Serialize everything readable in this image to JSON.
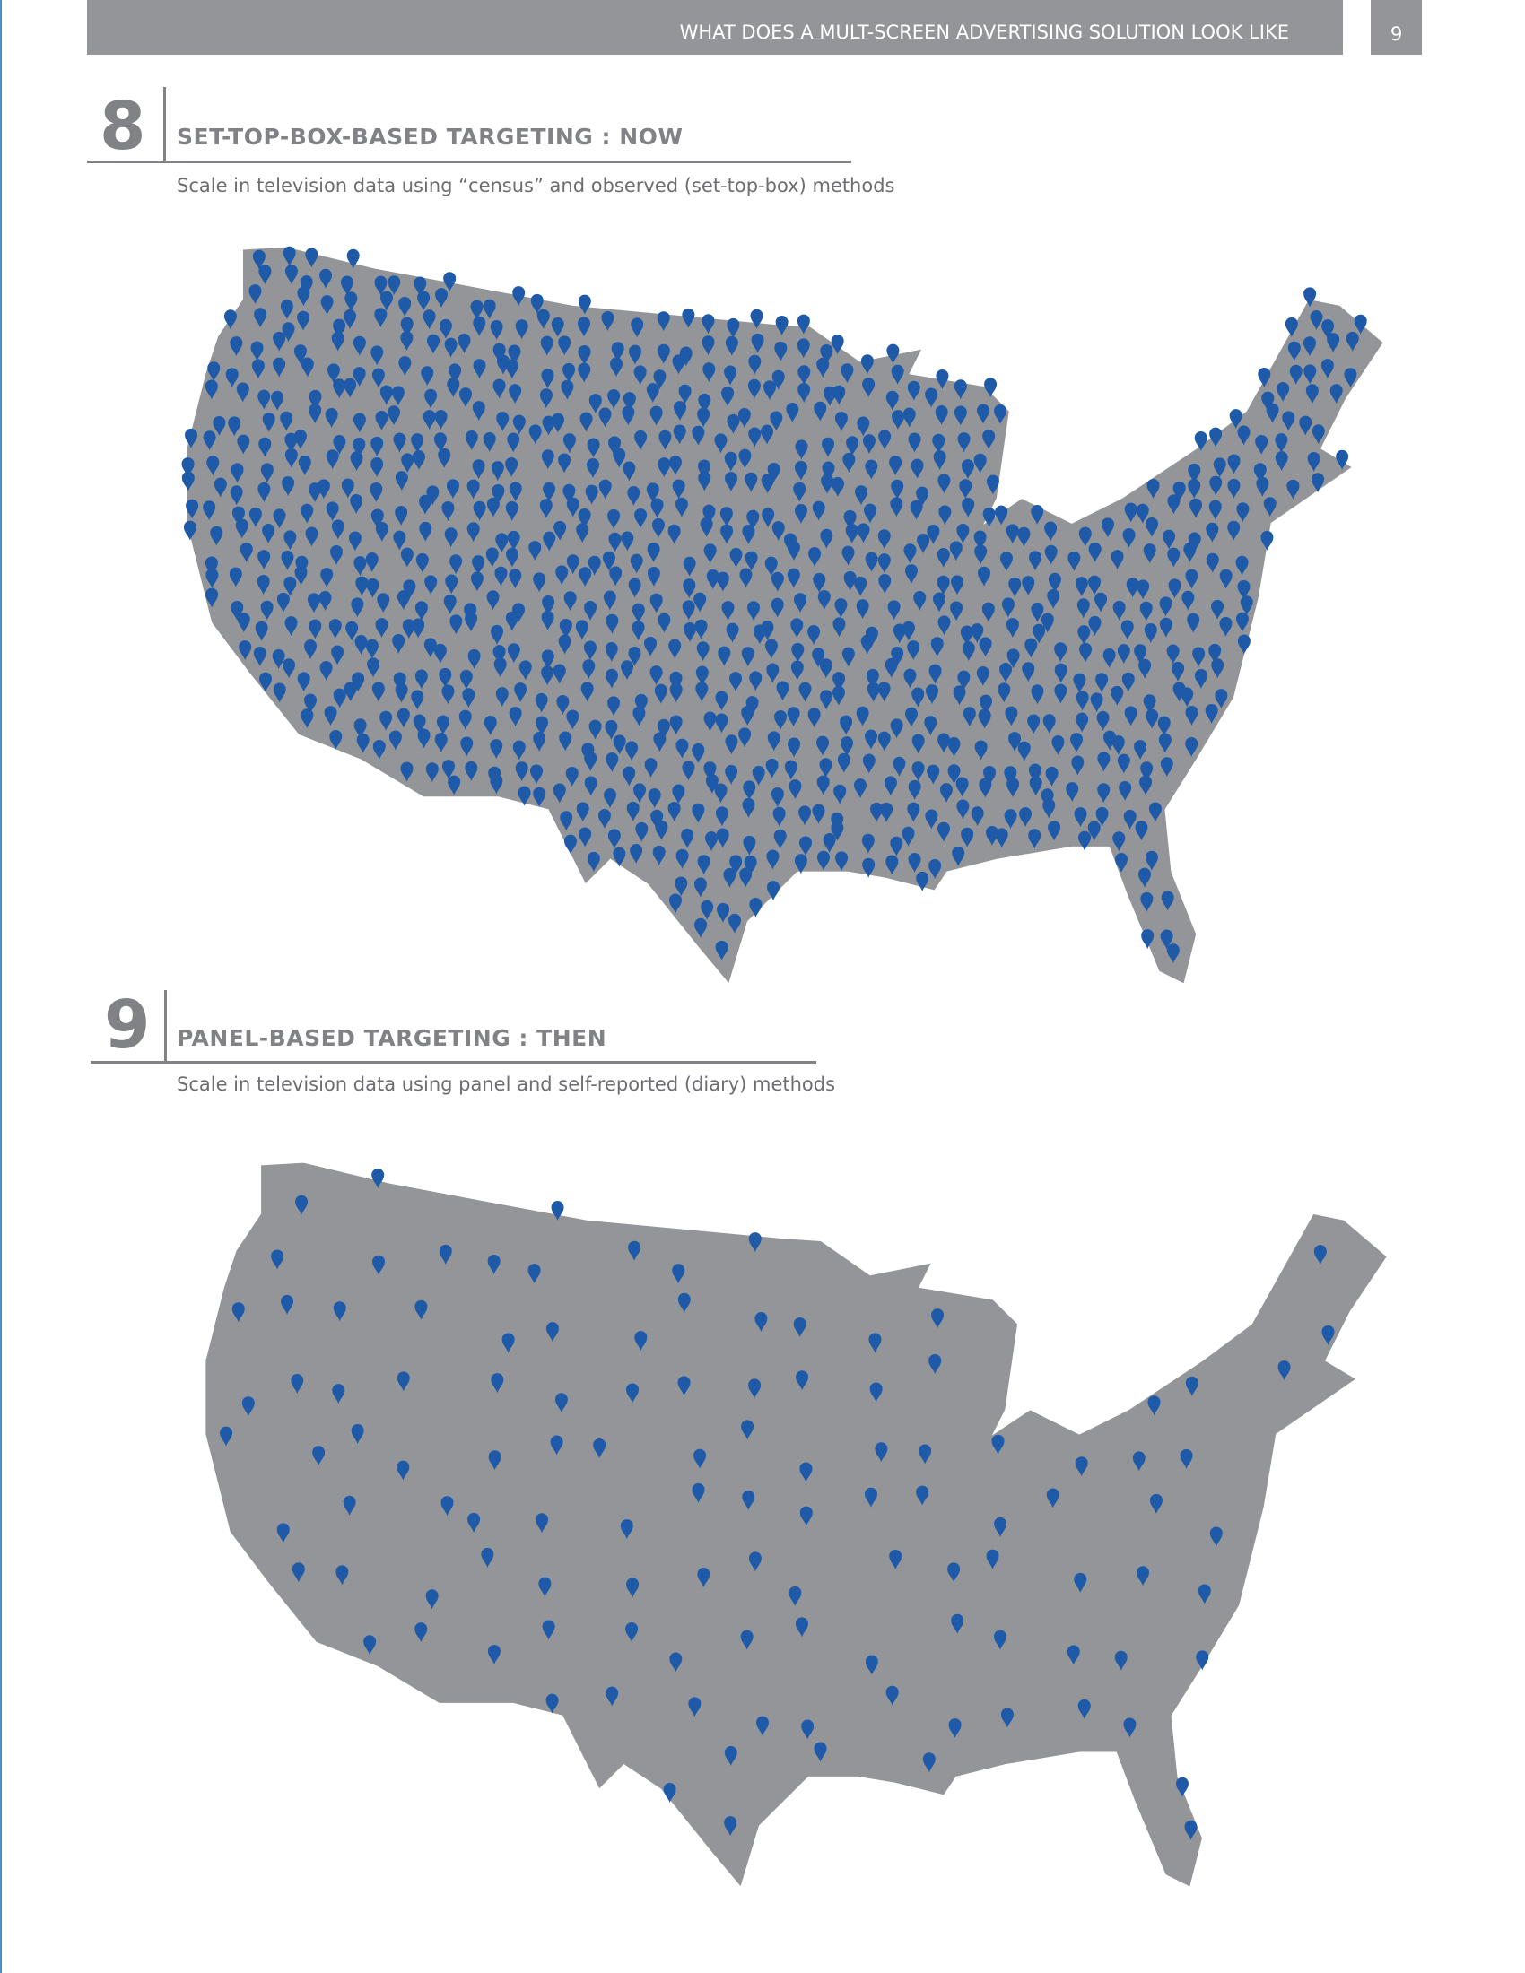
{
  "header": {
    "title": "WHAT DOES A MULT-SCREEN ADVERTISING SOLUTION LOOK LIKE",
    "page": "9"
  },
  "sections": [
    {
      "number": "8",
      "title": "SET-TOP-BOX-BASED TARGETING : NOW",
      "subtitle": "Scale in television data using “census” and observed (set-top-box) methods"
    },
    {
      "number": "9",
      "title": "PANEL-BASED TARGETING : THEN",
      "subtitle": "Scale in television data using panel and self-reported (diary) methods"
    }
  ]
}
